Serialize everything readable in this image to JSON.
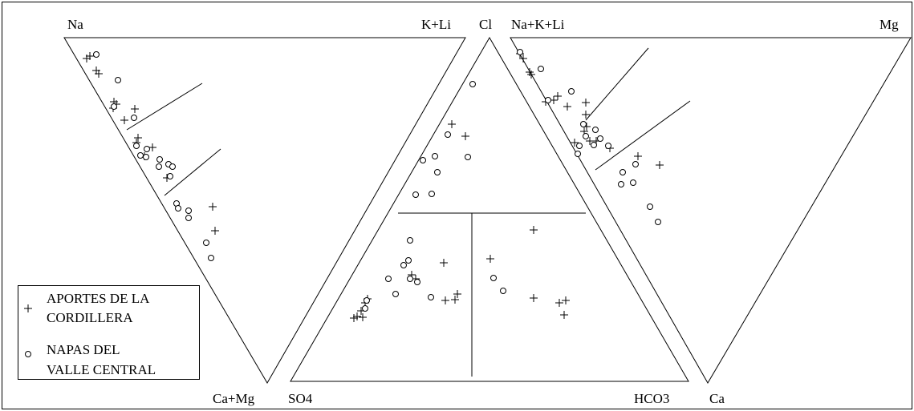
{
  "labels": {
    "na": "Na",
    "k_li": "K+Li",
    "cl": "Cl",
    "na_k_li": "Na+K+Li",
    "mg": "Mg",
    "ca_mg": "Ca+Mg",
    "so4": "SO4",
    "hco3": "HCO3",
    "ca": "Ca"
  },
  "legend": [
    {
      "lines": [
        "APORTES DE LA",
        "CORDILLERA"
      ]
    },
    {
      "lines": [
        "NAPAS DEL",
        "VALLE CENTRAL"
      ]
    }
  ]
}
